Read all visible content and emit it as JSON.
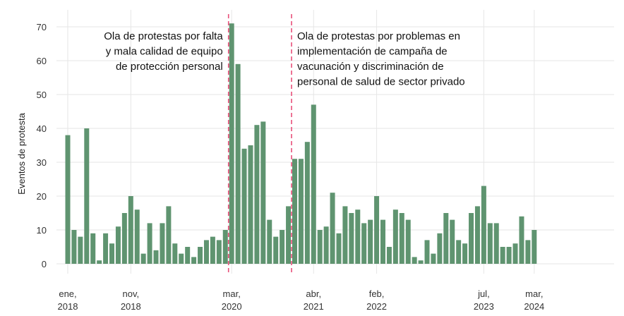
{
  "chart_data": {
    "type": "bar",
    "title": "",
    "xlabel": "",
    "ylabel": "Eventos de protesta",
    "ylim": [
      0,
      74
    ],
    "yticks": [
      0,
      10,
      20,
      30,
      40,
      50,
      60,
      70
    ],
    "grid": true,
    "legend": "none",
    "bar_color": "#5f9470",
    "annotation_line_color": "#e8507a",
    "start_month": "2018-01",
    "values": [
      38,
      10,
      8,
      40,
      9,
      1,
      9,
      6,
      11,
      15,
      20,
      16,
      3,
      12,
      4,
      12,
      17,
      6,
      3,
      5,
      2,
      5,
      7,
      8,
      7,
      10,
      71,
      59,
      34,
      35,
      41,
      42,
      13,
      8,
      10,
      17,
      31,
      31,
      36,
      47,
      10,
      11,
      21,
      9,
      17,
      15,
      16,
      12,
      13,
      20,
      13,
      5,
      16,
      15,
      13,
      2,
      1,
      7,
      3,
      9,
      15,
      13,
      7,
      6,
      15,
      17,
      23,
      12,
      12,
      5,
      5,
      6,
      14,
      7,
      10
    ],
    "x_tick_labels": [
      {
        "line1": "ene,",
        "line2": "2018",
        "index": 0
      },
      {
        "line1": "nov,",
        "line2": "2018",
        "index": 10
      },
      {
        "line1": "mar,",
        "line2": "2020",
        "index": 26
      },
      {
        "line1": "abr,",
        "line2": "2021",
        "index": 39
      },
      {
        "line1": "feb,",
        "line2": "2022",
        "index": 49
      },
      {
        "line1": "jul,",
        "line2": "2023",
        "index": 66
      },
      {
        "line1": "mar,",
        "line2": "2024",
        "index": 74
      }
    ],
    "annotations": [
      {
        "at_index": 25.5,
        "align": "right",
        "lines": [
          "Ola de protestas por falta",
          "y mala calidad de equipo",
          "de protección personal"
        ]
      },
      {
        "at_index": 35.5,
        "align": "left",
        "lines": [
          "Ola de protestas por problemas en",
          "implementación de campaña de",
          "vacunación y discriminación de",
          "personal de salud de sector privado"
        ]
      }
    ]
  }
}
